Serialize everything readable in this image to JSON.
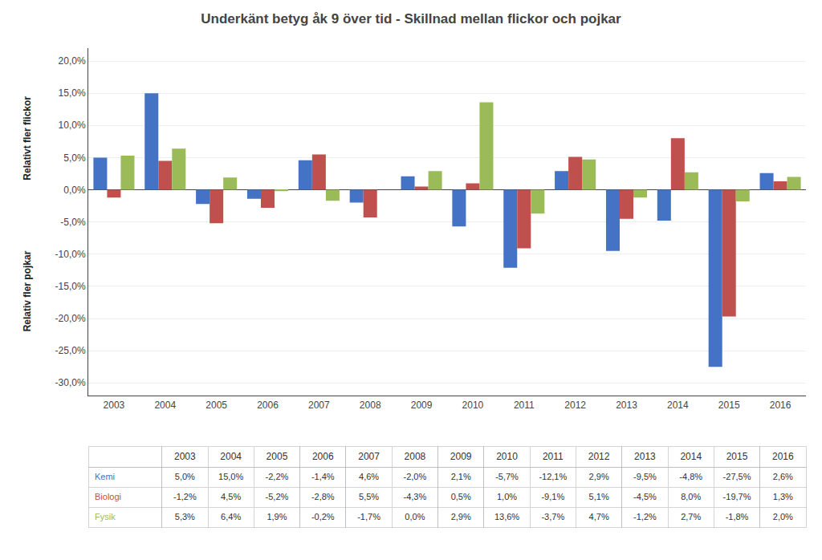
{
  "chart_data": {
    "type": "bar",
    "title": "Underkänt betyg åk 9 över tid - Skillnad mellan flickor och pojkar",
    "categories": [
      "2003",
      "2004",
      "2005",
      "2006",
      "2007",
      "2008",
      "2009",
      "2010",
      "2011",
      "2012",
      "2013",
      "2014",
      "2015",
      "2016"
    ],
    "series": [
      {
        "name": "Kemi",
        "color": "#4472C4",
        "values": [
          5.0,
          15.0,
          -2.2,
          -1.4,
          4.6,
          -2.0,
          2.1,
          -5.7,
          -12.1,
          2.9,
          -9.5,
          -4.8,
          -27.5,
          2.6
        ],
        "value_labels": [
          "5,0%",
          "15,0%",
          "-2,2%",
          "-1,4%",
          "4,6%",
          "-2,0%",
          "2,1%",
          "-5,7%",
          "-12,1%",
          "2,9%",
          "-9,5%",
          "-4,8%",
          "-27,5%",
          "2,6%"
        ]
      },
      {
        "name": "Biologi",
        "color": "#C0504D",
        "values": [
          -1.2,
          4.5,
          -5.2,
          -2.8,
          5.5,
          -4.3,
          0.5,
          1.0,
          -9.1,
          5.1,
          -4.5,
          8.0,
          -19.7,
          1.3
        ],
        "value_labels": [
          "-1,2%",
          "4,5%",
          "-5,2%",
          "-2,8%",
          "5,5%",
          "-4,3%",
          "0,5%",
          "1,0%",
          "-9,1%",
          "5,1%",
          "-4,5%",
          "8,0%",
          "-19,7%",
          "1,3%"
        ]
      },
      {
        "name": "Fysik",
        "color": "#9BBB59",
        "values": [
          5.3,
          6.4,
          1.9,
          -0.2,
          -1.7,
          0.0,
          2.9,
          13.6,
          -3.7,
          4.7,
          -1.2,
          2.7,
          -1.8,
          2.0
        ],
        "value_labels": [
          "5,3%",
          "6,4%",
          "1,9%",
          "-0,2%",
          "-1,7%",
          "0,0%",
          "2,9%",
          "13,6%",
          "-3,7%",
          "4,7%",
          "-1,2%",
          "2,7%",
          "-1,8%",
          "2,0%"
        ]
      }
    ],
    "annotations": [
      "Relativt fler flickor",
      "Relativ fler pojkar"
    ],
    "ylim": [
      -32.0,
      22.0
    ],
    "yticks": [
      {
        "value": -30,
        "label": "-30,0%"
      },
      {
        "value": -25,
        "label": "-25,0%"
      },
      {
        "value": -20,
        "label": "-20,0%"
      },
      {
        "value": -15,
        "label": "-15,0%"
      },
      {
        "value": -10,
        "label": "-10,0%"
      },
      {
        "value": -5,
        "label": "-5,0%"
      },
      {
        "value": 0,
        "label": "0,0%"
      },
      {
        "value": 5,
        "label": "5,0%"
      },
      {
        "value": 10,
        "label": "10,0%"
      },
      {
        "value": 15,
        "label": "15,0%"
      },
      {
        "value": 20,
        "label": "20,0%"
      }
    ],
    "grid": true,
    "data_labels": false
  }
}
